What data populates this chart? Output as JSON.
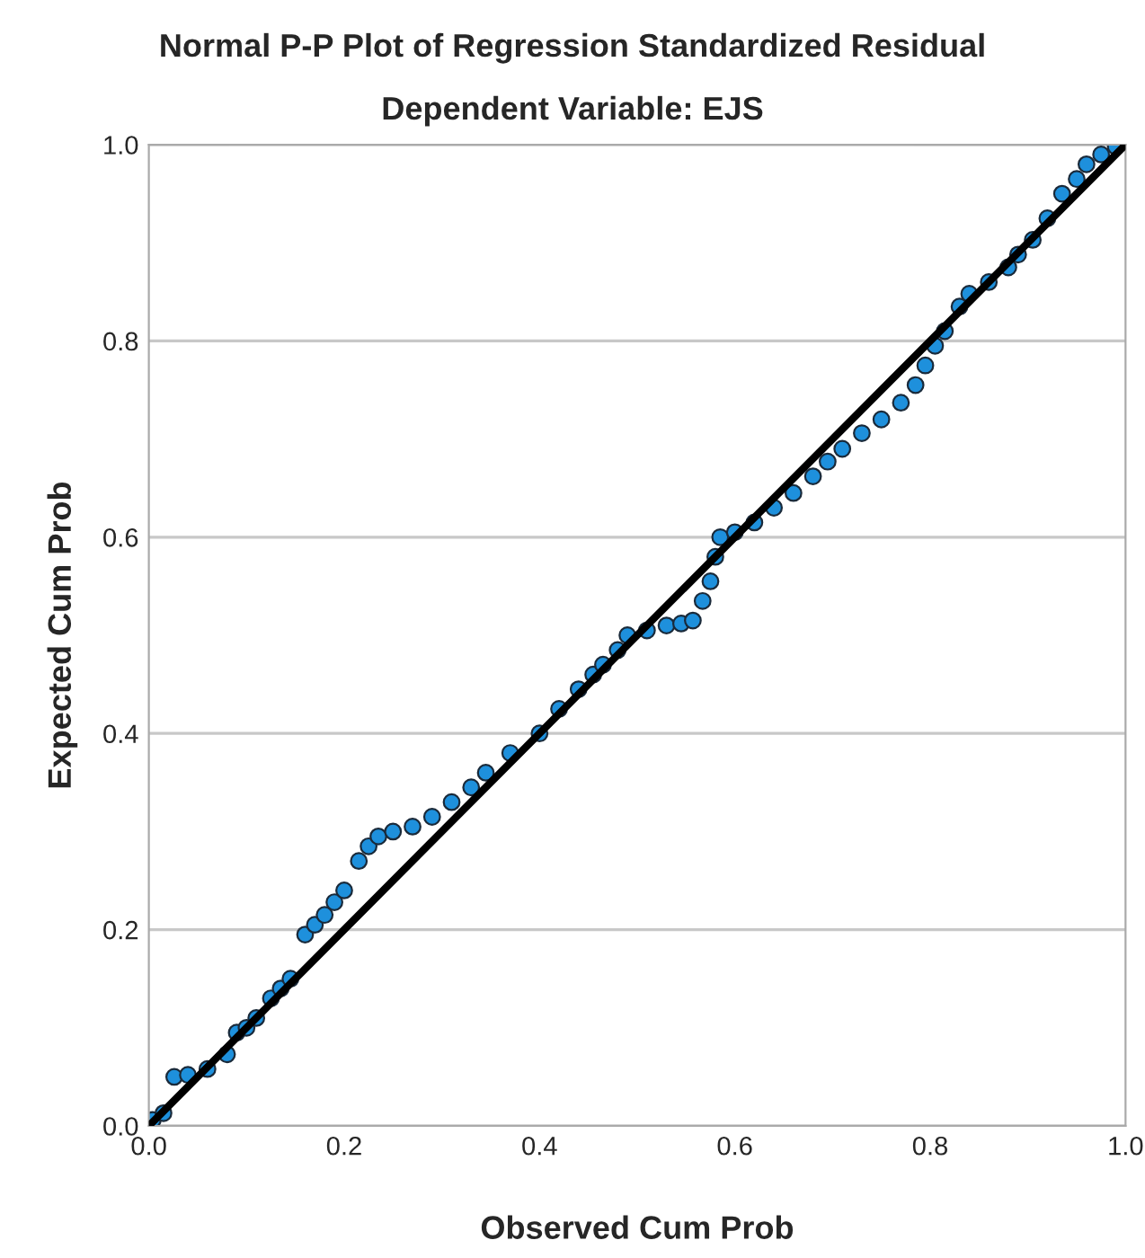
{
  "chart_data": {
    "type": "scatter",
    "title": "Normal P-P Plot of Regression Standardized Residual",
    "subtitle": "Dependent Variable: EJS",
    "xlabel": "Observed Cum Prob",
    "ylabel": "Expected Cum Prob",
    "xlim": [
      0,
      1
    ],
    "ylim": [
      0,
      1
    ],
    "xticks": [
      {
        "value": 0,
        "label": "0.0"
      },
      {
        "value": 0.2,
        "label": "0.2"
      },
      {
        "value": 0.4,
        "label": "0.4"
      },
      {
        "value": 0.6,
        "label": "0.6"
      },
      {
        "value": 0.8,
        "label": "0.8"
      },
      {
        "value": 1,
        "label": "1.0"
      }
    ],
    "yticks": [
      {
        "value": 0,
        "label": "0.0"
      },
      {
        "value": 0.2,
        "label": "0.2"
      },
      {
        "value": 0.4,
        "label": "0.4"
      },
      {
        "value": 0.6,
        "label": "0.6"
      },
      {
        "value": 0.8,
        "label": "0.8"
      },
      {
        "value": 1,
        "label": "1.0"
      }
    ],
    "grid": "y",
    "series": [
      {
        "color": "#1e90dc",
        "marker": "circle",
        "x": [
          0.004,
          0.015,
          0.026,
          0.04,
          0.06,
          0.08,
          0.09,
          0.1,
          0.11,
          0.125,
          0.135,
          0.145,
          0.16,
          0.17,
          0.18,
          0.19,
          0.2,
          0.215,
          0.225,
          0.235,
          0.25,
          0.27,
          0.29,
          0.31,
          0.33,
          0.345,
          0.37,
          0.4,
          0.42,
          0.44,
          0.455,
          0.465,
          0.48,
          0.49,
          0.51,
          0.53,
          0.545,
          0.557,
          0.567,
          0.575,
          0.58,
          0.585,
          0.6,
          0.62,
          0.64,
          0.66,
          0.68,
          0.695,
          0.71,
          0.73,
          0.75,
          0.77,
          0.785,
          0.795,
          0.805,
          0.815,
          0.83,
          0.84,
          0.86,
          0.88,
          0.89,
          0.905,
          0.92,
          0.935,
          0.95,
          0.96,
          0.975,
          0.99
        ],
        "values": [
          0.006,
          0.013,
          0.05,
          0.052,
          0.058,
          0.073,
          0.095,
          0.1,
          0.11,
          0.13,
          0.14,
          0.15,
          0.195,
          0.205,
          0.215,
          0.228,
          0.24,
          0.27,
          0.285,
          0.295,
          0.3,
          0.305,
          0.315,
          0.33,
          0.345,
          0.36,
          0.38,
          0.4,
          0.425,
          0.445,
          0.46,
          0.47,
          0.485,
          0.5,
          0.505,
          0.51,
          0.512,
          0.515,
          0.535,
          0.555,
          0.58,
          0.6,
          0.605,
          0.615,
          0.63,
          0.645,
          0.662,
          0.677,
          0.69,
          0.706,
          0.72,
          0.737,
          0.755,
          0.775,
          0.795,
          0.81,
          0.835,
          0.848,
          0.86,
          0.875,
          0.888,
          0.903,
          0.925,
          0.95,
          0.965,
          0.98,
          0.99,
          0.998
        ]
      },
      {
        "type": "line",
        "color": "#000000",
        "x": [
          0,
          1
        ],
        "values": [
          0,
          1
        ]
      }
    ]
  }
}
